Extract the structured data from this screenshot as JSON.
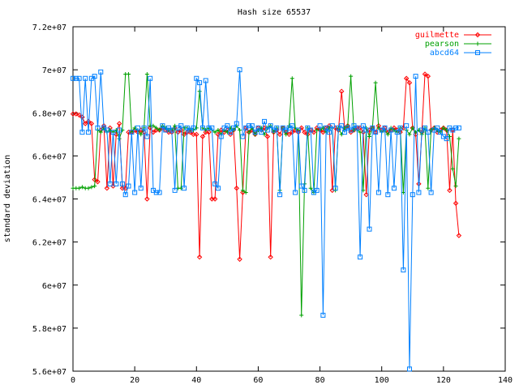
{
  "chart_data": {
    "type": "line",
    "title": "Hash size 65537",
    "xlabel": "",
    "ylabel": "standard deviation",
    "xlim": [
      0,
      140
    ],
    "ylim": [
      56000000,
      72000000
    ],
    "x_ticks": [
      0,
      20,
      40,
      60,
      80,
      100,
      120,
      140
    ],
    "x_tick_labels": [
      "0",
      "20",
      "40",
      "60",
      "80",
      "100",
      "120",
      "140"
    ],
    "y_ticks": [
      56000000,
      58000000,
      60000000,
      62000000,
      64000000,
      66000000,
      68000000,
      70000000,
      72000000
    ],
    "y_tick_labels": [
      "5.6e+07",
      "5.8e+07",
      "6e+07",
      "6.2e+07",
      "6.4e+07",
      "6.6e+07",
      "6.8e+07",
      "7e+07",
      "7.2e+07"
    ],
    "grid": false,
    "legend_position": "top-right",
    "series": [
      {
        "name": "guilmette",
        "color": "#ff0000",
        "marker": "diamond",
        "x": [
          0,
          1,
          2,
          3,
          4,
          5,
          6,
          7,
          8,
          9,
          10,
          11,
          12,
          13,
          14,
          15,
          16,
          17,
          18,
          19,
          20,
          21,
          22,
          23,
          24,
          25,
          26,
          27,
          28,
          29,
          30,
          31,
          32,
          33,
          34,
          35,
          36,
          37,
          38,
          39,
          40,
          41,
          42,
          43,
          44,
          45,
          46,
          47,
          48,
          49,
          50,
          51,
          52,
          53,
          54,
          55,
          56,
          57,
          58,
          59,
          60,
          61,
          62,
          63,
          64,
          65,
          66,
          67,
          68,
          69,
          70,
          71,
          72,
          73,
          74,
          75,
          76,
          77,
          78,
          79,
          80,
          81,
          82,
          83,
          84,
          85,
          86,
          87,
          88,
          89,
          90,
          91,
          92,
          93,
          94,
          95,
          96,
          97,
          98,
          99,
          100,
          101,
          102,
          103,
          104,
          105,
          106,
          107,
          108,
          109,
          110,
          111,
          112,
          113,
          114,
          115,
          116,
          117,
          118,
          119,
          120,
          121,
          122,
          123,
          124,
          125
        ],
        "y": [
          67950000,
          67950000,
          67900000,
          67800000,
          67500000,
          67600000,
          67500000,
          64900000,
          64800000,
          67200000,
          67400000,
          64500000,
          67300000,
          64600000,
          67000000,
          67500000,
          64500000,
          64500000,
          67100000,
          67100000,
          67200000,
          67100000,
          67200000,
          67100000,
          64000000,
          67300000,
          67100000,
          67200000,
          67200000,
          67300000,
          67200000,
          67100000,
          67100000,
          67300000,
          67100000,
          67200000,
          67000000,
          67100000,
          67100000,
          67000000,
          67000000,
          61300000,
          66900000,
          67100000,
          67100000,
          64000000,
          64000000,
          67000000,
          67200000,
          67100000,
          67200000,
          67000000,
          67200000,
          64500000,
          61200000,
          64300000,
          67300000,
          67100000,
          67200000,
          67000000,
          67300000,
          67200000,
          67300000,
          66900000,
          61300000,
          67100000,
          67200000,
          67000000,
          67300000,
          67100000,
          67000000,
          67100000,
          67200000,
          67100000,
          67300000,
          67100000,
          67000000,
          67200000,
          67100000,
          67300000,
          67200000,
          67100000,
          67300000,
          67400000,
          64400000,
          67300000,
          67200000,
          69000000,
          67300000,
          67400000,
          67100000,
          67200000,
          67300000,
          67300000,
          67100000,
          64200000,
          67200000,
          67300000,
          67100000,
          67400000,
          67200000,
          67300000,
          67100000,
          67200000,
          67300000,
          67200000,
          67100000,
          67300000,
          69600000,
          69400000,
          67300000,
          67000000,
          64700000,
          67100000,
          69800000,
          69700000,
          67200000,
          67300000,
          67100000,
          67200000,
          67300000,
          67200000,
          64400000,
          67200000,
          63800000,
          62300000
        ]
      },
      {
        "name": "pearson",
        "color": "#00a000",
        "marker": "plus",
        "x": [
          0,
          1,
          2,
          3,
          4,
          5,
          6,
          7,
          8,
          9,
          10,
          11,
          12,
          13,
          14,
          15,
          16,
          17,
          18,
          19,
          20,
          21,
          22,
          23,
          24,
          25,
          26,
          27,
          28,
          29,
          30,
          31,
          32,
          33,
          34,
          35,
          36,
          37,
          38,
          39,
          40,
          41,
          42,
          43,
          44,
          45,
          46,
          47,
          48,
          49,
          50,
          51,
          52,
          53,
          54,
          55,
          56,
          57,
          58,
          59,
          60,
          61,
          62,
          63,
          64,
          65,
          66,
          67,
          68,
          69,
          70,
          71,
          72,
          73,
          74,
          75,
          76,
          77,
          78,
          79,
          80,
          81,
          82,
          83,
          84,
          85,
          86,
          87,
          88,
          89,
          90,
          91,
          92,
          93,
          94,
          95,
          96,
          97,
          98,
          99,
          100,
          101,
          102,
          103,
          104,
          105,
          106,
          107,
          108,
          109,
          110,
          111,
          112,
          113,
          114,
          115,
          116,
          117,
          118,
          119,
          120,
          121,
          122,
          123,
          124,
          125
        ],
        "y": [
          64500000,
          64500000,
          64500000,
          64550000,
          64500000,
          64500000,
          64550000,
          64600000,
          67200000,
          67100000,
          67300000,
          67100000,
          67200000,
          67100000,
          67200000,
          66800000,
          67200000,
          69800000,
          69800000,
          67100000,
          67300000,
          67200000,
          67000000,
          67300000,
          69800000,
          67400000,
          67400000,
          67300000,
          67200000,
          67400000,
          67300000,
          67200000,
          67200000,
          67400000,
          64500000,
          64500000,
          67300000,
          67300000,
          67200000,
          67200000,
          67300000,
          69000000,
          67300000,
          67200000,
          67300000,
          67200000,
          67100000,
          67200000,
          67000000,
          67200000,
          67100000,
          67300000,
          67200000,
          67400000,
          67200000,
          64400000,
          64300000,
          67100000,
          67300000,
          67000000,
          67200000,
          67300000,
          67000000,
          67300000,
          67400000,
          67100000,
          67300000,
          64400000,
          67300000,
          67000000,
          67400000,
          69600000,
          67300000,
          67200000,
          58600000,
          64700000,
          67300000,
          64500000,
          64300000,
          67200000,
          67200000,
          67300000,
          67100000,
          67300000,
          67300000,
          64400000,
          67300000,
          67000000,
          67300000,
          67400000,
          69700000,
          67200000,
          67200000,
          67100000,
          64400000,
          67300000,
          66900000,
          67300000,
          69400000,
          67300000,
          67100000,
          67200000,
          67000000,
          67300000,
          67200000,
          67100000,
          67300000,
          64300000,
          67200000,
          67000000,
          67300000,
          67100000,
          67200000,
          67000000,
          67300000,
          64500000,
          67200000,
          67300000,
          67200000,
          67100000,
          67300000,
          67200000,
          66900000,
          65400000,
          64600000,
          66800000
        ]
      },
      {
        "name": "abcd64",
        "color": "#0080ff",
        "marker": "square",
        "x": [
          0,
          1,
          2,
          3,
          4,
          5,
          6,
          7,
          8,
          9,
          10,
          11,
          12,
          13,
          14,
          15,
          16,
          17,
          18,
          19,
          20,
          21,
          22,
          23,
          24,
          25,
          26,
          27,
          28,
          29,
          30,
          31,
          32,
          33,
          34,
          35,
          36,
          37,
          38,
          39,
          40,
          41,
          42,
          43,
          44,
          45,
          46,
          47,
          48,
          49,
          50,
          51,
          52,
          53,
          54,
          55,
          56,
          57,
          58,
          59,
          60,
          61,
          62,
          63,
          64,
          65,
          66,
          67,
          68,
          69,
          70,
          71,
          72,
          73,
          74,
          75,
          76,
          77,
          78,
          79,
          80,
          81,
          82,
          83,
          84,
          85,
          86,
          87,
          88,
          89,
          90,
          91,
          92,
          93,
          94,
          95,
          96,
          97,
          98,
          99,
          100,
          101,
          102,
          103,
          104,
          105,
          106,
          107,
          108,
          109,
          110,
          111,
          112,
          113,
          114,
          115,
          116,
          117,
          118,
          119,
          120,
          121,
          122,
          123,
          124,
          125
        ],
        "y": [
          69600000,
          69600000,
          69600000,
          67100000,
          69600000,
          67100000,
          69600000,
          69700000,
          67300000,
          69900000,
          67300000,
          67200000,
          64700000,
          67100000,
          64700000,
          67200000,
          64700000,
          64200000,
          64600000,
          67100000,
          64300000,
          67300000,
          64500000,
          67300000,
          66900000,
          69600000,
          64400000,
          64300000,
          64300000,
          67400000,
          67200000,
          67300000,
          67200000,
          64400000,
          67300000,
          67400000,
          64500000,
          67300000,
          67200000,
          67300000,
          69600000,
          69400000,
          67300000,
          69500000,
          67300000,
          67300000,
          64700000,
          64500000,
          66900000,
          67300000,
          67400000,
          67100000,
          67300000,
          67500000,
          70000000,
          66900000,
          67300000,
          67400000,
          67400000,
          67100000,
          67300000,
          67100000,
          67600000,
          67200000,
          67400000,
          67200000,
          67300000,
          64200000,
          67300000,
          67200000,
          67300000,
          67400000,
          64300000,
          67200000,
          64600000,
          64400000,
          67300000,
          67200000,
          64300000,
          64400000,
          67400000,
          58600000,
          67300000,
          67100000,
          67400000,
          64500000,
          67300000,
          67400000,
          67100000,
          67300000,
          67200000,
          67400000,
          67300000,
          61300000,
          67400000,
          67200000,
          62600000,
          67300000,
          67100000,
          64300000,
          67200000,
          67300000,
          64200000,
          67200000,
          64500000,
          67100000,
          67300000,
          60700000,
          67400000,
          56100000,
          64200000,
          69700000,
          64300000,
          67200000,
          67300000,
          67100000,
          64300000,
          67200000,
          67300000,
          67100000,
          66900000,
          66800000,
          67300000,
          67200000,
          67300000,
          67300000
        ]
      }
    ]
  }
}
